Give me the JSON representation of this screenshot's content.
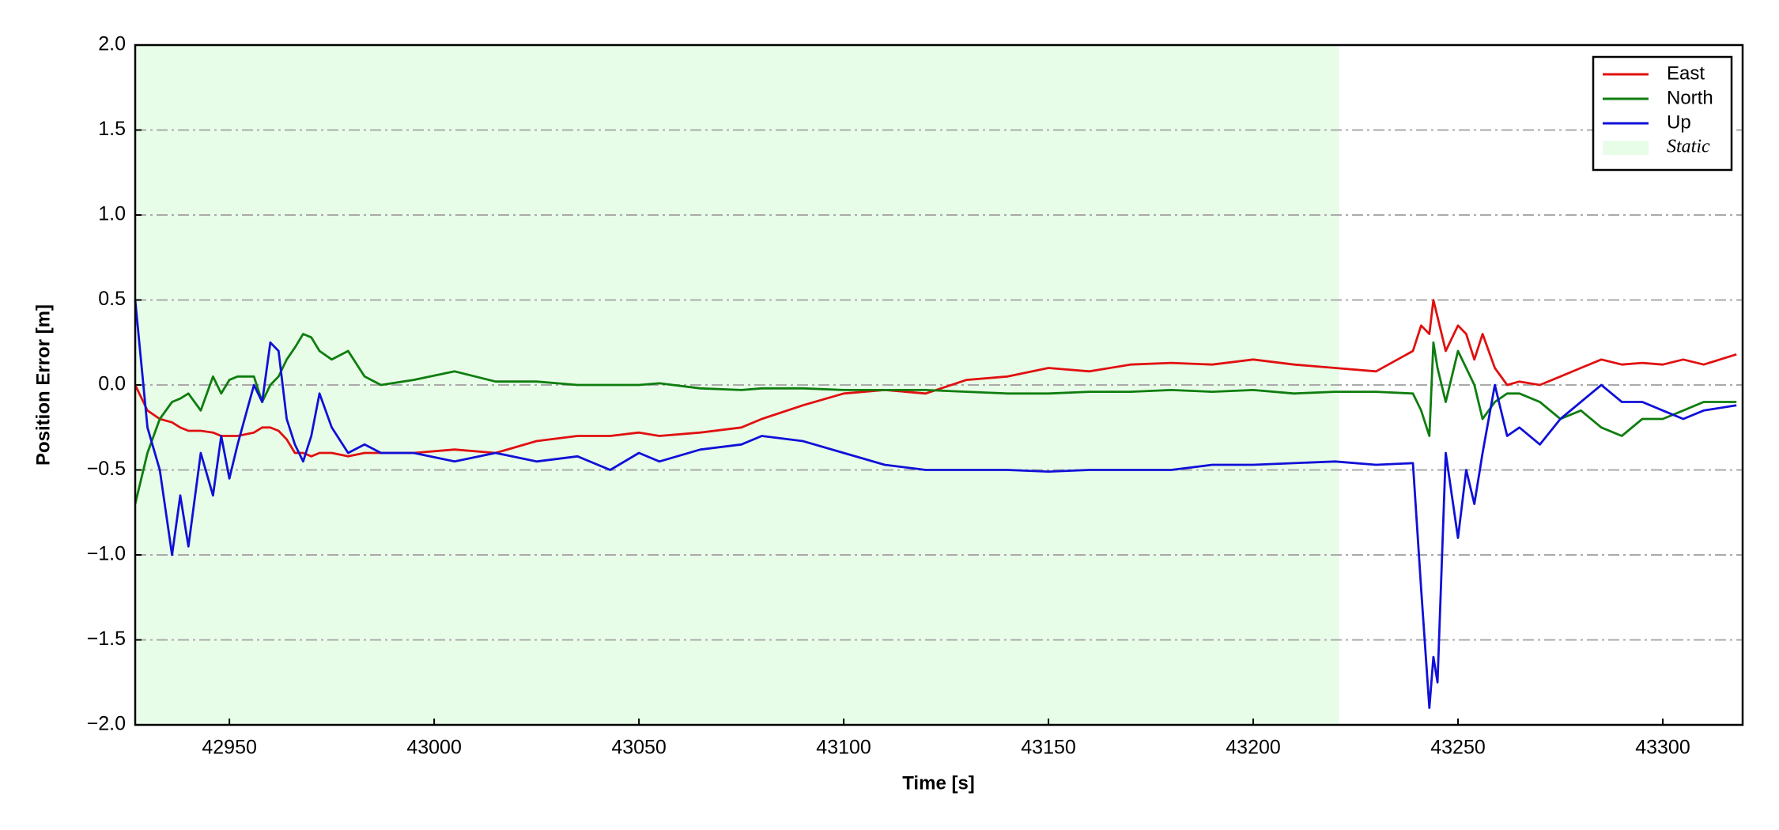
{
  "chart_data": {
    "type": "line",
    "xlabel": "Time [s]",
    "ylabel": "Position Error [m]",
    "xlim": [
      42927,
      43319.5
    ],
    "ylim": [
      -2.0,
      2.0
    ],
    "xticks": [
      42950,
      43000,
      43050,
      43100,
      43150,
      43200,
      43250,
      43300
    ],
    "yticks": [
      {
        "value": -2.0,
        "label": "−2.0"
      },
      {
        "value": -1.5,
        "label": "−1.5"
      },
      {
        "value": -1.0,
        "label": "−1.0"
      },
      {
        "value": -0.5,
        "label": "−0.5"
      },
      {
        "value": 0.0,
        "label": "0.0"
      },
      0.5,
      {
        "value": 1.0,
        "label": "1.0"
      },
      1.5,
      {
        "value": 2.0,
        "label": "2.0"
      }
    ],
    "grid": true,
    "legend": "upper right",
    "span": {
      "name": "Static",
      "color": "#e8fde8",
      "x": [
        42927,
        43221
      ]
    },
    "x": [
      42927,
      42930,
      42933,
      42936,
      42938,
      42940,
      42943,
      42946,
      42948,
      42950,
      42952,
      42956,
      42958,
      42960,
      42962,
      42964,
      42966,
      42968,
      42970,
      42972,
      42975,
      42979,
      42983,
      42987,
      42995,
      43005,
      43015,
      43025,
      43035,
      43043,
      43050,
      43055,
      43065,
      43075,
      43080,
      43090,
      43100,
      43110,
      43120,
      43130,
      43140,
      43150,
      43160,
      43170,
      43180,
      43190,
      43200,
      43210,
      43220,
      43230,
      43239,
      43241,
      43243,
      43244,
      43245,
      43247,
      43250,
      43252,
      43254,
      43256,
      43259,
      43262,
      43265,
      43270,
      43275,
      43280,
      43285,
      43290,
      43295,
      43300,
      43305,
      43310,
      43318
    ],
    "series": [
      {
        "name": "East",
        "color": "#e01010",
        "values": [
          0.0,
          -0.15,
          -0.2,
          -0.22,
          -0.25,
          -0.27,
          -0.27,
          -0.28,
          -0.3,
          -0.3,
          -0.3,
          -0.28,
          -0.25,
          -0.25,
          -0.27,
          -0.32,
          -0.4,
          -0.4,
          -0.42,
          -0.4,
          -0.4,
          -0.42,
          -0.4,
          -0.4,
          -0.4,
          -0.38,
          -0.4,
          -0.33,
          -0.3,
          -0.3,
          -0.28,
          -0.3,
          -0.28,
          -0.25,
          -0.2,
          -0.12,
          -0.05,
          -0.03,
          -0.05,
          0.03,
          0.05,
          0.1,
          0.08,
          0.12,
          0.13,
          0.12,
          0.15,
          0.12,
          0.1,
          0.08,
          0.2,
          0.35,
          0.3,
          0.5,
          0.4,
          0.2,
          0.35,
          0.3,
          0.15,
          0.3,
          0.1,
          0.0,
          0.02,
          0.0,
          0.05,
          0.1,
          0.15,
          0.12,
          0.13,
          0.12,
          0.15,
          0.12,
          0.18
        ]
      },
      {
        "name": "North",
        "color": "#0e7d0e",
        "values": [
          -0.7,
          -0.4,
          -0.2,
          -0.1,
          -0.08,
          -0.05,
          -0.15,
          0.05,
          -0.05,
          0.03,
          0.05,
          0.05,
          -0.1,
          0.0,
          0.05,
          0.15,
          0.22,
          0.3,
          0.28,
          0.2,
          0.15,
          0.2,
          0.05,
          0.0,
          0.03,
          0.08,
          0.02,
          0.02,
          0.0,
          0.0,
          0.0,
          0.01,
          -0.02,
          -0.03,
          -0.02,
          -0.02,
          -0.03,
          -0.03,
          -0.03,
          -0.04,
          -0.05,
          -0.05,
          -0.04,
          -0.04,
          -0.03,
          -0.04,
          -0.03,
          -0.05,
          -0.04,
          -0.04,
          -0.05,
          -0.15,
          -0.3,
          0.25,
          0.1,
          -0.1,
          0.2,
          0.1,
          0.0,
          -0.2,
          -0.1,
          -0.05,
          -0.05,
          -0.1,
          -0.2,
          -0.15,
          -0.25,
          -0.3,
          -0.2,
          -0.2,
          -0.15,
          -0.1,
          -0.1
        ]
      },
      {
        "name": "Up",
        "color": "#1010d8",
        "values": [
          0.5,
          -0.25,
          -0.5,
          -1.0,
          -0.65,
          -0.95,
          -0.4,
          -0.65,
          -0.3,
          -0.55,
          -0.35,
          0.0,
          -0.1,
          0.25,
          0.2,
          -0.2,
          -0.35,
          -0.45,
          -0.3,
          -0.05,
          -0.25,
          -0.4,
          -0.35,
          -0.4,
          -0.4,
          -0.45,
          -0.4,
          -0.45,
          -0.42,
          -0.5,
          -0.4,
          -0.45,
          -0.38,
          -0.35,
          -0.3,
          -0.33,
          -0.4,
          -0.47,
          -0.5,
          -0.5,
          -0.5,
          -0.51,
          -0.5,
          -0.5,
          -0.5,
          -0.47,
          -0.47,
          -0.46,
          -0.45,
          -0.47,
          -0.46,
          -1.2,
          -1.9,
          -1.6,
          -1.75,
          -0.4,
          -0.9,
          -0.5,
          -0.7,
          -0.4,
          0.0,
          -0.3,
          -0.25,
          -0.35,
          -0.2,
          -0.1,
          0.0,
          -0.1,
          -0.1,
          -0.15,
          -0.2,
          -0.15,
          -0.12
        ]
      }
    ]
  }
}
